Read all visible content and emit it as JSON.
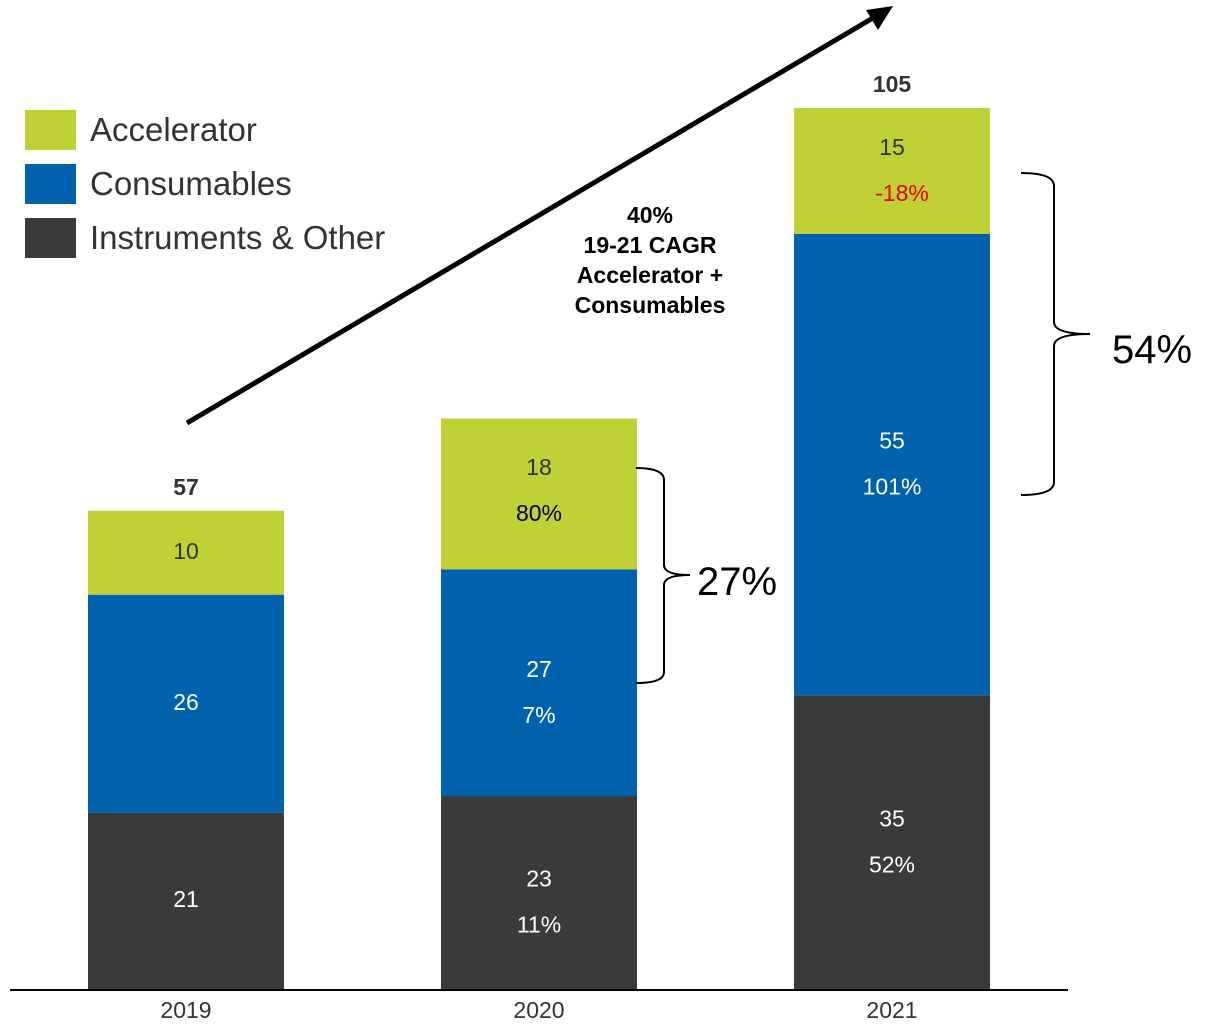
{
  "chart_data": {
    "type": "bar",
    "stacked": true,
    "categories": [
      "2019",
      "2020",
      "2021"
    ],
    "series": [
      {
        "name": "Instruments & Other",
        "values": [
          21,
          23,
          35
        ],
        "growth": [
          "",
          "11%",
          "52%"
        ],
        "color": "#3a3a3a"
      },
      {
        "name": "Consumables",
        "values": [
          26,
          27,
          55
        ],
        "growth": [
          "",
          "7%",
          "101%"
        ],
        "color": "#0061ad"
      },
      {
        "name": "Accelerator",
        "values": [
          10,
          18,
          15
        ],
        "growth": [
          "",
          "80%",
          "-18%"
        ],
        "color": "#bfd134"
      }
    ],
    "totals": [
      "57",
      "",
      "105"
    ],
    "legend_order": [
      "Accelerator",
      "Consumables",
      "Instruments & Other"
    ],
    "legend_position": "top-left",
    "annotations": {
      "cagr": [
        "40%",
        "19-21 CAGR",
        "Accelerator +",
        "Consumables"
      ],
      "bracket_2020": "27%",
      "bracket_2021": "54%"
    },
    "ylim": [
      0,
      110
    ],
    "grid": false,
    "title": "",
    "xlabel": "",
    "ylabel": ""
  },
  "colors": {
    "accelerator": "#bfd134",
    "consumables": "#0061ad",
    "instruments": "#3a3a3a",
    "negative": "#e3000f",
    "label_on_green": "#333333",
    "label_on_dark": "#ffffff"
  }
}
